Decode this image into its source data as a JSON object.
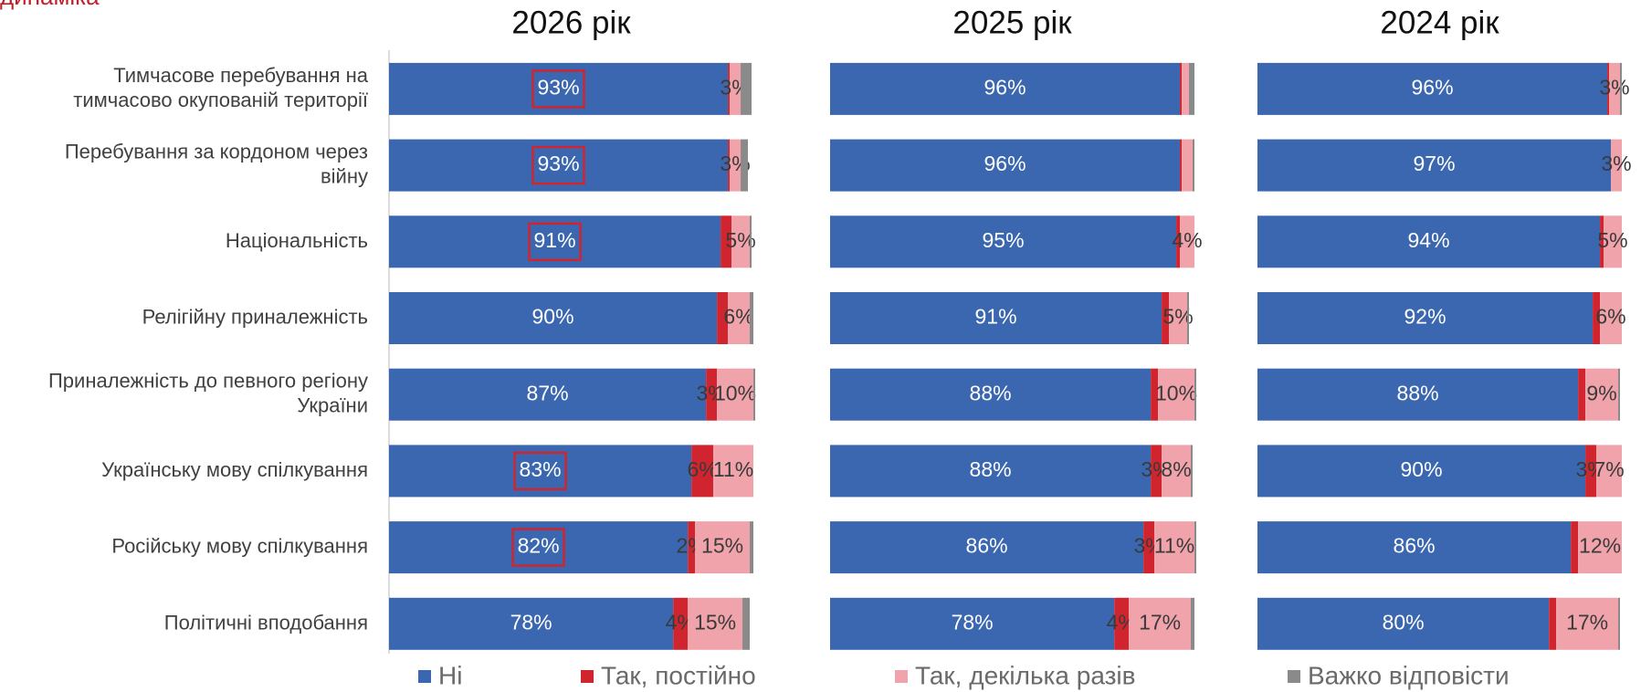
{
  "chart_data": [
    {
      "type": "stacked-barh",
      "title": "2026 рік",
      "heading": "динаміка",
      "categories": [
        "Тимчасове перебування на\nтимчасово окупованій території",
        "Перебування за кордоном через\nвійну",
        "Національність",
        "Релігійну приналежність",
        "Приналежність до певного регіону\nУкраїни",
        "Українську мову спілкування",
        "Російську мову спілкування",
        "Політичні вподобання"
      ],
      "xlim": [
        0,
        100
      ],
      "series": [
        {
          "name": "Ні",
          "color": "#3a67b0",
          "values": [
            93,
            93,
            91,
            90,
            87,
            83,
            82,
            78
          ],
          "value_labels": [
            "93%",
            "93%",
            "91%",
            "90%",
            "87%",
            "83%",
            "82%",
            "78%"
          ]
        },
        {
          "name": "Так, постійно",
          "color": "#d0252f",
          "values": [
            0.5,
            0.5,
            3,
            3,
            3,
            6,
            2,
            4
          ],
          "value_labels": [
            null,
            null,
            null,
            null,
            "3%",
            "6%",
            "2%",
            "4%"
          ]
        },
        {
          "name": "Так, декілька разів",
          "color": "#f0a3aa",
          "values": [
            3,
            3,
            5,
            6,
            10,
            11,
            15,
            15
          ],
          "value_labels": [
            "3%",
            "3%",
            "5%",
            "6%",
            "10%",
            "11%",
            "15%",
            "15%"
          ]
        },
        {
          "name": "Важко відповісти",
          "color": "#8a8a8a",
          "values": [
            3,
            2,
            0.5,
            1,
            0.5,
            0,
            1,
            2
          ],
          "value_labels": [
            null,
            null,
            null,
            null,
            null,
            null,
            null,
            null
          ]
        }
      ]
    },
    {
      "type": "stacked-barh",
      "title": "2025 рік",
      "xlim": [
        0,
        100
      ],
      "series": [
        {
          "values": [
            96,
            96,
            95,
            91,
            88,
            88,
            86,
            78
          ],
          "value_labels": [
            "96%",
            "96%",
            "95%",
            "91%",
            "88%",
            "88%",
            "86%",
            "78%"
          ]
        },
        {
          "values": [
            0.5,
            0.5,
            1,
            2,
            2,
            3,
            3,
            4
          ],
          "value_labels": [
            null,
            null,
            null,
            null,
            null,
            "3%",
            "3%",
            "4%"
          ]
        },
        {
          "values": [
            2,
            3,
            4,
            5,
            10,
            8,
            11,
            17
          ],
          "value_labels": [
            null,
            null,
            "4%",
            "5%",
            "10%",
            "8%",
            "11%",
            "17%"
          ]
        },
        {
          "values": [
            1.5,
            0.5,
            0,
            0.5,
            0.5,
            0.5,
            0.5,
            1
          ],
          "value_labels": [
            null,
            null,
            null,
            null,
            null,
            null,
            null,
            null
          ]
        }
      ]
    },
    {
      "type": "stacked-barh",
      "title": "2024 рік",
      "xlim": [
        0,
        100
      ],
      "series": [
        {
          "values": [
            96,
            97,
            94,
            92,
            88,
            90,
            86,
            80
          ],
          "value_labels": [
            "96%",
            "97%",
            "94%",
            "92%",
            "88%",
            "90%",
            "86%",
            "80%"
          ]
        },
        {
          "values": [
            0.5,
            0,
            1,
            2,
            2,
            3,
            2,
            2
          ],
          "value_labels": [
            null,
            null,
            null,
            null,
            null,
            "3%",
            null,
            null
          ]
        },
        {
          "values": [
            3,
            3,
            5,
            6,
            9,
            7,
            12,
            17
          ],
          "value_labels": [
            "3%",
            "3%",
            "5%",
            "6%",
            "9%",
            "7%",
            "12%",
            "17%"
          ]
        },
        {
          "values": [
            0.5,
            0,
            0,
            0,
            0.5,
            0,
            0,
            0.5
          ],
          "value_labels": [
            null,
            null,
            null,
            null,
            null,
            null,
            null,
            null
          ]
        }
      ]
    }
  ]
}
